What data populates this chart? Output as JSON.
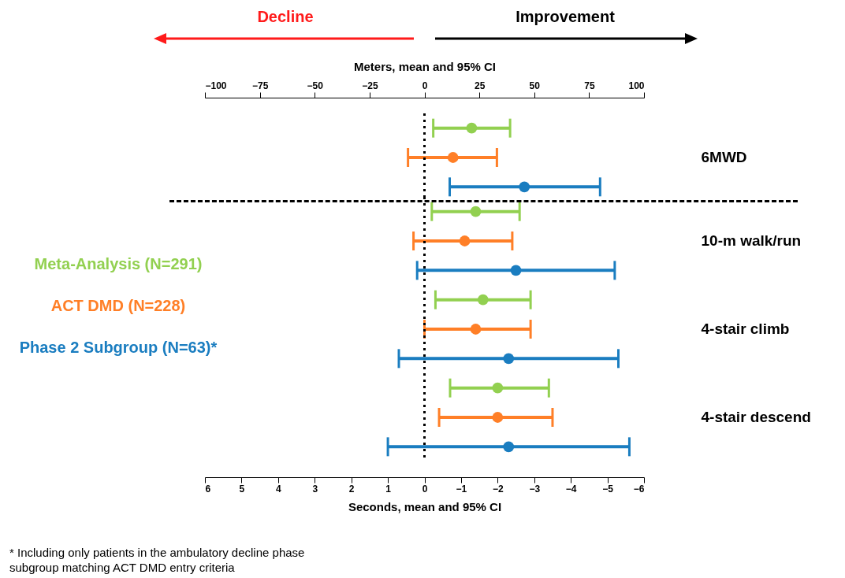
{
  "chart_data": [
    {
      "type": "scatter",
      "orientation": "horizontal",
      "categories": [
        "6MWD"
      ],
      "marker": "circle",
      "xlabel": "Meters, mean and 95% CI",
      "xlim": [
        -100,
        100
      ],
      "xticks": [
        -100,
        -75,
        -50,
        -25,
        0,
        25,
        50,
        75,
        100
      ],
      "series": [
        {
          "color": "#92d050",
          "values": [
            21.5
          ],
          "errors": [
            [
              4,
              39
            ]
          ]
        },
        {
          "color": "#ff7f27",
          "values": [
            13
          ],
          "errors": [
            [
              -7.5,
              33
            ]
          ]
        },
        {
          "color": "#1a7dc0",
          "values": [
            45.5
          ],
          "errors": [
            [
              11.5,
              80
            ]
          ]
        }
      ],
      "ref_lines": [
        {
          "axis": "x",
          "value": 0,
          "line_style": "dotted"
        }
      ],
      "annotations": [
        "Decline",
        "Improvement"
      ]
    },
    {
      "type": "scatter",
      "orientation": "horizontal",
      "categories": [
        "10-m walk/run",
        "4-stair climb",
        "4-stair descend"
      ],
      "marker": "circle",
      "xlabel": "Seconds, mean and 95% CI",
      "xlim": [
        6,
        -6
      ],
      "xticks": [
        6,
        5,
        4,
        3,
        2,
        1,
        0,
        -1,
        -2,
        -3,
        -4,
        -5,
        -6
      ],
      "series": [
        {
          "name": "Meta-Analysis (N=291)",
          "color": "#92d050",
          "values": [
            -1.4,
            -1.6,
            -2.0
          ],
          "errors": [
            [
              -2.6,
              -0.2
            ],
            [
              -2.9,
              -0.3
            ],
            [
              -3.4,
              -0.7
            ]
          ]
        },
        {
          "name": "ACT DMD (N=228)",
          "color": "#ff7f27",
          "values": [
            -1.1,
            -1.4,
            -2.0
          ],
          "errors": [
            [
              -2.4,
              0.3
            ],
            [
              -2.9,
              0.0
            ],
            [
              -3.5,
              -0.4
            ]
          ]
        },
        {
          "name": "Phase 2 Subgroup (N=63)*",
          "color": "#1a7dc0",
          "values": [
            -2.5,
            -2.3,
            -2.3
          ],
          "errors": [
            [
              -5.2,
              0.2
            ],
            [
              -5.3,
              0.7
            ],
            [
              -5.6,
              1.0
            ]
          ]
        }
      ],
      "ref_lines": [
        {
          "axis": "x",
          "value": 0,
          "line_style": "dotted"
        }
      ],
      "legend": "left",
      "annotations": [
        "* Including only patients in the ambulatory decline phase subgroup matching ACT DMD entry criteria"
      ]
    }
  ]
}
